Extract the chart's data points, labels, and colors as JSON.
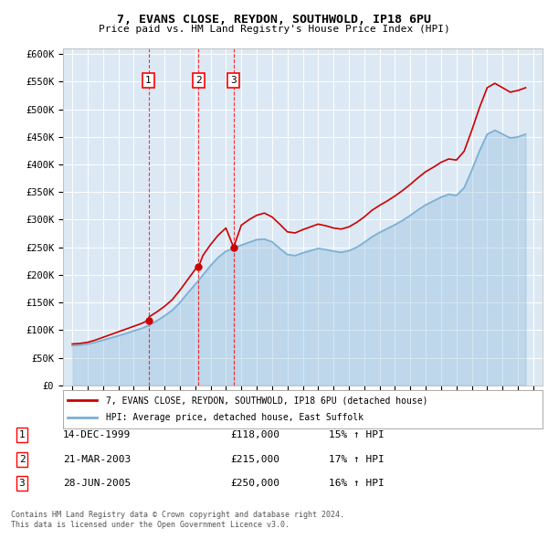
{
  "title1": "7, EVANS CLOSE, REYDON, SOUTHWOLD, IP18 6PU",
  "title2": "Price paid vs. HM Land Registry's House Price Index (HPI)",
  "ylabel_ticks": [
    "£0",
    "£50K",
    "£100K",
    "£150K",
    "£200K",
    "£250K",
    "£300K",
    "£350K",
    "£400K",
    "£450K",
    "£500K",
    "£550K",
    "£600K"
  ],
  "ytick_values": [
    0,
    50000,
    100000,
    150000,
    200000,
    250000,
    300000,
    350000,
    400000,
    450000,
    500000,
    550000,
    600000
  ],
  "background_color": "#dce9f5",
  "grid_color": "#ffffff",
  "red_line_color": "#cc0000",
  "blue_line_color": "#7bafd4",
  "transaction_prices": [
    118000,
    215000,
    250000
  ],
  "transaction_labels": [
    "1",
    "2",
    "3"
  ],
  "transaction_years": [
    1999.96,
    2003.22,
    2005.5
  ],
  "transaction_info": [
    {
      "label": "1",
      "date": "14-DEC-1999",
      "price": "£118,000",
      "hpi": "15% ↑ HPI"
    },
    {
      "label": "2",
      "date": "21-MAR-2003",
      "price": "£215,000",
      "hpi": "17% ↑ HPI"
    },
    {
      "label": "3",
      "date": "28-JUN-2005",
      "price": "£250,000",
      "hpi": "16% ↑ HPI"
    }
  ],
  "legend_line1": "7, EVANS CLOSE, REYDON, SOUTHWOLD, IP18 6PU (detached house)",
  "legend_line2": "HPI: Average price, detached house, East Suffolk",
  "footer1": "Contains HM Land Registry data © Crown copyright and database right 2024.",
  "footer2": "This data is licensed under the Open Government Licence v3.0.",
  "hpi_years": [
    1995.0,
    1995.5,
    1996.0,
    1996.5,
    1997.0,
    1997.5,
    1998.0,
    1998.5,
    1999.0,
    1999.5,
    2000.0,
    2000.5,
    2001.0,
    2001.5,
    2002.0,
    2002.5,
    2003.0,
    2003.5,
    2004.0,
    2004.5,
    2005.0,
    2005.5,
    2006.0,
    2006.5,
    2007.0,
    2007.5,
    2008.0,
    2008.5,
    2009.0,
    2009.5,
    2010.0,
    2010.5,
    2011.0,
    2011.5,
    2012.0,
    2012.5,
    2013.0,
    2013.5,
    2014.0,
    2014.5,
    2015.0,
    2015.5,
    2016.0,
    2016.5,
    2017.0,
    2017.5,
    2018.0,
    2018.5,
    2019.0,
    2019.5,
    2020.0,
    2020.5,
    2021.0,
    2021.5,
    2022.0,
    2022.5,
    2023.0,
    2023.5,
    2024.0,
    2024.5
  ],
  "hpi_values": [
    72000,
    73000,
    75000,
    78000,
    82000,
    86000,
    90000,
    94000,
    99000,
    103000,
    109000,
    117000,
    126000,
    136000,
    150000,
    167000,
    183000,
    200000,
    217000,
    232000,
    243000,
    248000,
    254000,
    259000,
    264000,
    265000,
    260000,
    248000,
    237000,
    235000,
    240000,
    244000,
    248000,
    246000,
    243000,
    241000,
    244000,
    250000,
    259000,
    269000,
    277000,
    284000,
    291000,
    299000,
    308000,
    318000,
    327000,
    334000,
    341000,
    346000,
    344000,
    358000,
    390000,
    425000,
    455000,
    462000,
    455000,
    448000,
    450000,
    455000
  ],
  "red_years": [
    1995.0,
    1995.5,
    1996.0,
    1996.5,
    1997.0,
    1997.5,
    1998.0,
    1998.5,
    1999.0,
    1999.5,
    1999.96,
    2000.0,
    2000.5,
    2001.0,
    2001.5,
    2002.0,
    2002.5,
    2003.0,
    2003.22,
    2003.22,
    2003.5,
    2004.0,
    2004.5,
    2005.0,
    2005.5,
    2005.5,
    2006.0,
    2006.5,
    2007.0,
    2007.5,
    2008.0,
    2008.5,
    2009.0,
    2009.5,
    2010.0,
    2010.5,
    2011.0,
    2011.5,
    2012.0,
    2012.5,
    2013.0,
    2013.5,
    2014.0,
    2014.5,
    2015.0,
    2015.5,
    2016.0,
    2016.5,
    2017.0,
    2017.5,
    2018.0,
    2018.5,
    2019.0,
    2019.5,
    2020.0,
    2020.5,
    2021.0,
    2021.5,
    2022.0,
    2022.5,
    2023.0,
    2023.5,
    2024.0,
    2024.5
  ],
  "red_values": [
    75000,
    76000,
    78000,
    82000,
    87000,
    92000,
    97000,
    102000,
    107000,
    112000,
    118000,
    124000,
    133000,
    143000,
    155000,
    172000,
    191000,
    210000,
    215000,
    215000,
    235000,
    255000,
    272000,
    285000,
    250000,
    250000,
    290000,
    300000,
    308000,
    312000,
    305000,
    292000,
    278000,
    276000,
    282000,
    287000,
    292000,
    289000,
    285000,
    283000,
    287000,
    295000,
    305000,
    317000,
    326000,
    334000,
    343000,
    353000,
    364000,
    376000,
    387000,
    395000,
    404000,
    410000,
    408000,
    424000,
    462000,
    503000,
    539000,
    547000,
    539000,
    531000,
    534000,
    539000
  ]
}
